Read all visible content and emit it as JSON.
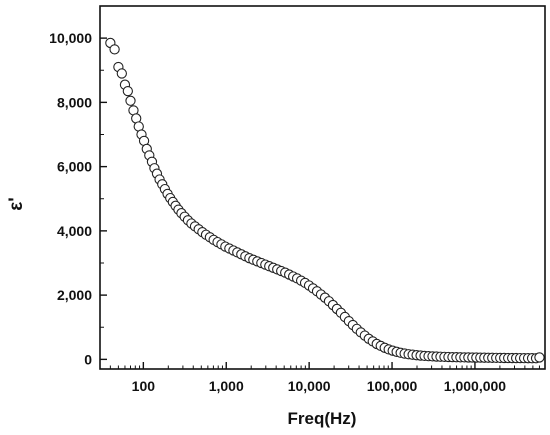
{
  "chart_data": {
    "type": "scatter",
    "title": "",
    "xlabel": "Freq(Hz)",
    "ylabel": "ε'",
    "x_scale": "log",
    "xlim": [
      30,
      7000000
    ],
    "ylim": [
      -300,
      11000
    ],
    "grid": false,
    "legend": "none",
    "marker": "open-circle",
    "colors": {
      "axis": "#111111",
      "marker_stroke": "#222222",
      "marker_fill": "#ffffff"
    },
    "x_ticks": [
      {
        "value": 100,
        "label": "100"
      },
      {
        "value": 1000,
        "label": "1,000"
      },
      {
        "value": 10000,
        "label": "10,000"
      },
      {
        "value": 100000,
        "label": "100,000"
      },
      {
        "value": 1000000,
        "label": "1,000,000"
      }
    ],
    "y_ticks": [
      {
        "value": 0,
        "label": "0"
      },
      {
        "value": 2000,
        "label": "2,000"
      },
      {
        "value": 4000,
        "label": "4,000"
      },
      {
        "value": 6000,
        "label": "6,000"
      },
      {
        "value": 8000,
        "label": "8,000"
      },
      {
        "value": 10000,
        "label": "10,000"
      }
    ],
    "series": [
      {
        "x": [
          40,
          45,
          50,
          55,
          60,
          65,
          70,
          76,
          82,
          88,
          95,
          102,
          110,
          118,
          127,
          136,
          146,
          157,
          169,
          182,
          196,
          211,
          227,
          245,
          265,
          288,
          315,
          345,
          380,
          420,
          465,
          515,
          570,
          635,
          705,
          785,
          875,
          975,
          1090,
          1220,
          1360,
          1520,
          1700,
          1900,
          2120,
          2370,
          2650,
          2960,
          3300,
          3690,
          4120,
          4600,
          5140,
          5740,
          6410,
          7160,
          8000,
          8930,
          9970,
          11140,
          12440,
          13900,
          15520,
          17340,
          19370,
          21630,
          24160,
          26990,
          30140,
          33670,
          37610,
          42010,
          46920,
          52410,
          58540,
          65390,
          73040,
          81580,
          91120,
          101780,
          113680,
          126980,
          141830,
          158420,
          176950,
          197650,
          220770,
          246590,
          275430,
          307650,
          343640,
          383830,
          428720,
          478870,
          534880,
          597450,
          667330,
          745390,
          832580,
          929970,
          1038740,
          1160240,
          1295950,
          1447540,
          1616850,
          1805970,
          2017210,
          2253160,
          2516700,
          2811070,
          3139880,
          3507150,
          3917370,
          4375580,
          4887380,
          5459050,
          6000000
        ],
        "y": [
          9850,
          9650,
          9100,
          8900,
          8550,
          8350,
          8050,
          7750,
          7500,
          7250,
          7000,
          6800,
          6550,
          6350,
          6150,
          5950,
          5780,
          5600,
          5450,
          5300,
          5150,
          5020,
          4900,
          4780,
          4660,
          4550,
          4440,
          4330,
          4230,
          4140,
          4050,
          3960,
          3880,
          3800,
          3720,
          3650,
          3580,
          3510,
          3450,
          3390,
          3330,
          3270,
          3210,
          3150,
          3100,
          3050,
          3000,
          2950,
          2900,
          2850,
          2800,
          2750,
          2700,
          2640,
          2580,
          2520,
          2450,
          2380,
          2300,
          2210,
          2120,
          2020,
          1920,
          1810,
          1690,
          1570,
          1450,
          1320,
          1190,
          1070,
          950,
          840,
          740,
          640,
          560,
          480,
          420,
          360,
          310,
          270,
          235,
          205,
          180,
          160,
          145,
          130,
          118,
          108,
          100,
          93,
          87,
          82,
          78,
          74,
          70,
          67,
          64,
          62,
          60,
          58,
          56,
          54,
          52,
          50,
          48,
          47,
          45,
          44,
          42,
          41,
          40,
          39,
          38,
          37,
          36,
          35,
          60
        ]
      }
    ]
  }
}
